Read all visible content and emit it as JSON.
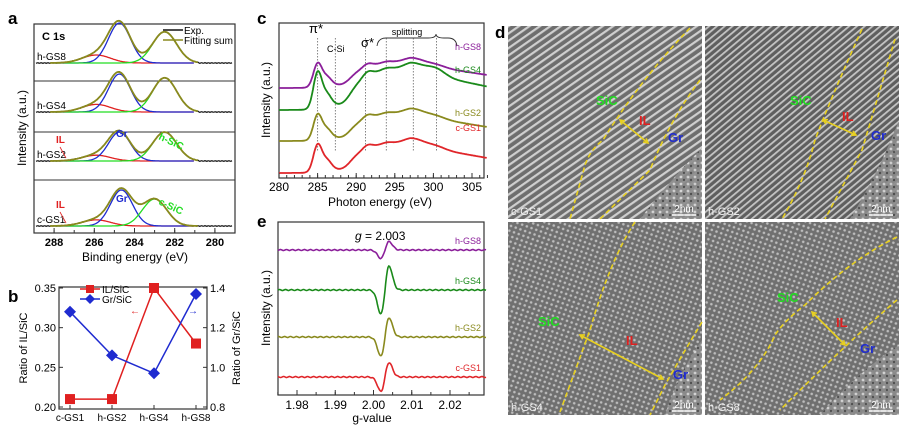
{
  "chart_data": [
    {
      "panel": "a",
      "type": "line",
      "title": "C 1s",
      "xlabel": "Binding energy (eV)",
      "ylabel": "Intensity (a.u.)",
      "xlim": [
        289,
        279
      ],
      "xticks": [
        288,
        286,
        284,
        282,
        280
      ],
      "legend": {
        "placement": "top-right",
        "entries": [
          {
            "name": "Exp.",
            "color": "#111111"
          },
          {
            "name": "Fitting sum",
            "color": "#8a8a1e"
          }
        ]
      },
      "series_colors": {
        "exp": "#111111",
        "fit": "#8a8a1e",
        "Gr": "#1f2bd0",
        "IL": "#e02020",
        "SiC": "#22dd22"
      },
      "samples": [
        {
          "name": "h-GS8",
          "peaks": {
            "IL": {
              "center": 285.9,
              "height": 0.2
            },
            "Gr": {
              "center": 284.75,
              "height": 1.0
            },
            "SiC": {
              "center": 282.5,
              "height": 0.78
            }
          }
        },
        {
          "name": "h-GS4",
          "peaks": {
            "IL": {
              "center": 285.9,
              "height": 0.2
            },
            "Gr": {
              "center": 284.75,
              "height": 1.0
            },
            "SiC": {
              "center": 282.5,
              "height": 0.9
            }
          }
        },
        {
          "name": "h-GS2",
          "peaks": {
            "IL": {
              "center": 285.9,
              "height": 0.17
            },
            "Gr": {
              "center": 284.75,
              "height": 0.85
            },
            "SiC": {
              "center": 282.5,
              "height": 0.85
            }
          },
          "labels": {
            "IL": "IL",
            "Gr": "Gr",
            "SiC": "h-SiC"
          }
        },
        {
          "name": "c-GS1",
          "peaks": {
            "IL": {
              "center": 285.9,
              "height": 0.17
            },
            "Gr": {
              "center": 284.65,
              "height": 1.0
            },
            "SiC": {
              "center": 283.0,
              "height": 0.75
            }
          },
          "labels": {
            "IL": "IL",
            "Gr": "Gr",
            "SiC": "c-SiC"
          }
        }
      ]
    },
    {
      "panel": "b",
      "type": "line",
      "categories": [
        "c-GS1",
        "h-GS2",
        "h-GS4",
        "h-GS8"
      ],
      "series": [
        {
          "name": "IL/SiC",
          "axis": "left",
          "color": "#e02020",
          "marker": "square",
          "values": [
            0.21,
            0.21,
            0.35,
            0.28
          ]
        },
        {
          "name": "Gr/SiC",
          "axis": "right",
          "color": "#1f2bd0",
          "marker": "diamond",
          "values": [
            1.28,
            1.06,
            0.97,
            1.37
          ]
        }
      ],
      "ylabel": "Ratio of IL/SiC",
      "y2label": "Ratio of Gr/SiC",
      "ylim": [
        0.2,
        0.35
      ],
      "yticks": [
        "0.20",
        "0.25",
        "0.30",
        "0.35"
      ],
      "y2lim": [
        0.8,
        1.4
      ],
      "y2ticks": [
        "0.8",
        "1.0",
        "1.2",
        "1.4"
      ],
      "legend": {
        "placement": "top-left"
      },
      "arrows": {
        "left": "←",
        "right": "→"
      }
    },
    {
      "panel": "c",
      "type": "line",
      "xlabel": "Photon energy (eV)",
      "ylabel": "Intensity (a.u.)",
      "xlim": [
        280,
        307
      ],
      "xticks": [
        280,
        285,
        290,
        295,
        300,
        305
      ],
      "annotations": {
        "pi": "π*",
        "csi": "C-Si",
        "sigma": "σ*",
        "splitting": "splitting"
      },
      "reference_lines_eV": [
        285,
        287.3,
        291.2,
        293.9,
        297.4,
        300.4
      ],
      "series": [
        {
          "name": "h-GS8",
          "color": "#8b1f9a"
        },
        {
          "name": "h-GS4",
          "color": "#1a8a1a"
        },
        {
          "name": "h-GS2",
          "color": "#8a8a1e"
        },
        {
          "name": "c-GS1",
          "color": "#e0262a"
        }
      ]
    },
    {
      "panel": "e",
      "type": "line",
      "xlabel": "g-value",
      "ylabel": "Intensity (a.u.)",
      "xlim": [
        1.975,
        2.029
      ],
      "xticks": [
        "1.98",
        "1.99",
        "2.00",
        "2.01",
        "2.02"
      ],
      "annotation": "g = 2.003",
      "annotation_italic": "g",
      "annotation_rest": " = 2.003",
      "series": [
        {
          "name": "h-GS8",
          "color": "#8b1f9a",
          "amplitude": 0.35
        },
        {
          "name": "h-GS4",
          "color": "#1a8a1a",
          "amplitude": 1.0
        },
        {
          "name": "h-GS2",
          "color": "#8a8a1e",
          "amplitude": 0.8
        },
        {
          "name": "c-GS1",
          "color": "#e0262a",
          "amplitude": 0.6
        }
      ]
    },
    {
      "panel": "d",
      "type": "image-grid",
      "tiles": [
        {
          "sample": "c-GS1",
          "scale_bar": "2 nm",
          "labels": {
            "sic": "SiC",
            "il": "IL",
            "gr": "Gr"
          }
        },
        {
          "sample": "h-GS2",
          "scale_bar": "2 nm",
          "labels": {
            "sic": "SiC",
            "il": "IL",
            "gr": "Gr"
          }
        },
        {
          "sample": "h-GS4",
          "scale_bar": "2 nm",
          "labels": {
            "sic": "SiC",
            "il": "IL",
            "gr": "Gr"
          }
        },
        {
          "sample": "h-GS8",
          "scale_bar": "2 nm",
          "labels": {
            "sic": "SiC",
            "il": "IL",
            "gr": "Gr"
          }
        }
      ],
      "label_colors": {
        "sic": "#22dd22",
        "il": "#e02020",
        "gr": "#1f2bd0",
        "boundary": "#e8d020"
      }
    }
  ],
  "panel_letters": {
    "a": "a",
    "b": "b",
    "c": "c",
    "d": "d",
    "e": "e"
  }
}
